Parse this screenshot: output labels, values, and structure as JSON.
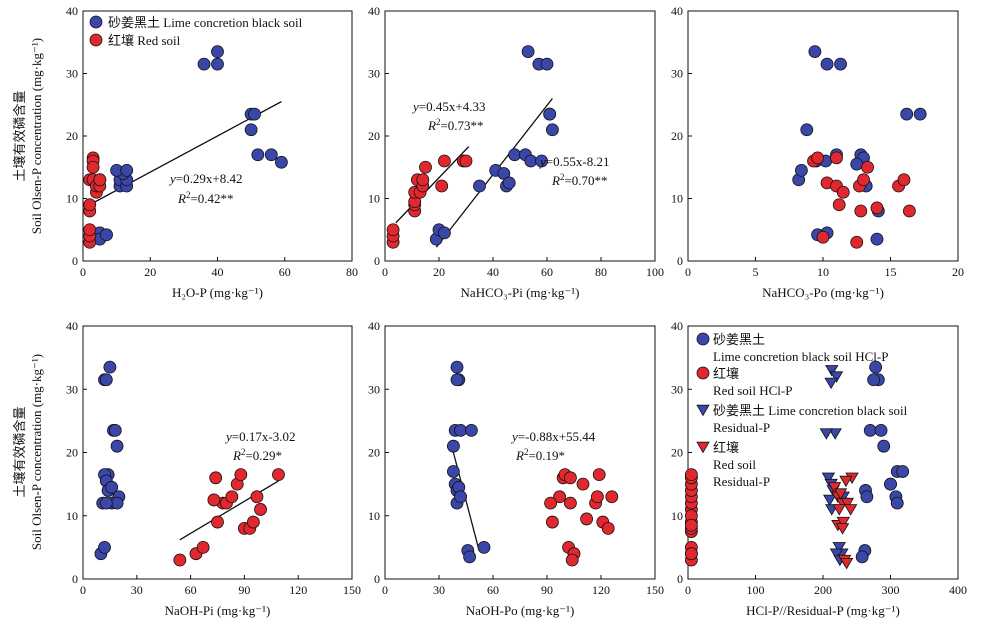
{
  "y_axis_label_cn": "土壤有效磷含量",
  "y_axis_label_en": "Soil Olsen-P concentration (mg·kg⁻¹)",
  "legend": {
    "top": [
      {
        "marker": "circle",
        "color": "#3a46a8",
        "label": "砂姜黑土 Lime concretion black soil"
      },
      {
        "marker": "circle",
        "color": "#e0282e",
        "label": "红壤 Red soil"
      }
    ],
    "bottom": [
      {
        "marker": "circle",
        "color": "#3a46a8",
        "line1": "砂姜黑土",
        "line2": "Lime concretion black soil HCl-P"
      },
      {
        "marker": "circle",
        "color": "#e0282e",
        "line1": "红壤",
        "line2": "Red soil HCl-P"
      },
      {
        "marker": "triangle",
        "color": "#3a46a8",
        "line1": "砂姜黑土 Lime concretion black soil",
        "line2": "Residual-P"
      },
      {
        "marker": "triangle",
        "color": "#e0282e",
        "line1": "红壤",
        "line2": "Red soil",
        "line3": "Residual-P"
      }
    ]
  },
  "colors": {
    "blue": "#3a46a8",
    "red": "#e0282e"
  },
  "chart_data": [
    {
      "type": "scatter",
      "xlabel": "H₂O-P (mg·kg⁻¹)",
      "xlim": [
        0,
        80
      ],
      "ylim": [
        0,
        40
      ],
      "xticks": [
        "0",
        "20",
        "40",
        "60",
        "80"
      ],
      "yticks": [
        "0",
        "10",
        "20",
        "30",
        "40"
      ],
      "series": [
        {
          "name": "砂姜黑土 Lime concretion black soil",
          "color": "#3a46a8",
          "marker": "circle",
          "x": [
            5,
            5,
            7,
            11,
            11,
            13,
            13,
            12,
            10,
            13,
            36,
            40,
            40,
            50,
            50,
            51,
            52,
            56,
            59
          ],
          "y": [
            4.5,
            3.5,
            4.2,
            12,
            13,
            12,
            13,
            14,
            14.5,
            14.5,
            31.5,
            31.5,
            33.5,
            21,
            23.5,
            23.5,
            17,
            17,
            15.8
          ]
        },
        {
          "name": "红壤 Red soil",
          "color": "#e0282e",
          "marker": "circle",
          "x": [
            2,
            2,
            2,
            2,
            2,
            2,
            3,
            3,
            3,
            3,
            4,
            4,
            5,
            5,
            5
          ],
          "y": [
            3,
            4,
            5,
            8,
            9,
            13,
            16.5,
            16,
            15,
            13,
            11,
            12,
            12,
            13,
            13
          ]
        }
      ],
      "fits": [
        {
          "x": [
            3,
            59
          ],
          "y": [
            9.3,
            25.5
          ]
        }
      ],
      "equation": {
        "lead": "y",
        "rest": "=0.29x+8.42",
        "r2": "=0.42**"
      }
    },
    {
      "type": "scatter",
      "xlabel": "NaHCO₃-Pi (mg·kg⁻¹)",
      "xlim": [
        0,
        100
      ],
      "ylim": [
        0,
        40
      ],
      "xticks": [
        "0",
        "20",
        "40",
        "60",
        "80",
        "100"
      ],
      "yticks": [
        "0",
        "10",
        "20",
        "30",
        "40"
      ],
      "series": [
        {
          "name": "砂姜黑土 Lime concretion black soil",
          "color": "#3a46a8",
          "marker": "circle",
          "x": [
            19,
            20,
            22,
            35,
            41,
            44,
            45,
            46,
            48,
            52,
            54,
            57,
            53,
            60,
            61,
            61,
            62,
            58
          ],
          "y": [
            3.5,
            5,
            4.5,
            12,
            14.5,
            14,
            12,
            12.5,
            17,
            17,
            16,
            31.5,
            33.5,
            31.5,
            23.5,
            23.5,
            21,
            16
          ]
        },
        {
          "name": "红壤 Red soil",
          "color": "#e0282e",
          "marker": "circle",
          "x": [
            3,
            3,
            3,
            11,
            11,
            11,
            11,
            12,
            13,
            14,
            14,
            15,
            21,
            22,
            29,
            30
          ],
          "y": [
            3,
            4,
            5,
            8,
            9,
            9.5,
            11,
            13,
            11,
            12,
            13,
            15,
            12,
            16,
            16,
            16
          ]
        }
      ],
      "fits": [
        {
          "x": [
            4,
            31
          ],
          "y": [
            6.1,
            18.3
          ]
        },
        {
          "x": [
            19,
            62
          ],
          "y": [
            2.2,
            26
          ]
        }
      ],
      "equation": {
        "lead": "y",
        "rest": "=0.45x+4.33",
        "r2": "=0.73**"
      },
      "equation2": {
        "lead": "y",
        "rest": "=0.55x-8.21",
        "r2": "=0.70**"
      }
    },
    {
      "type": "scatter",
      "xlabel": "NaHCO₃-Po (mg·kg⁻¹)",
      "xlim": [
        0,
        20
      ],
      "ylim": [
        0,
        40
      ],
      "xticks": [
        "0",
        "5",
        "10",
        "15",
        "20"
      ],
      "yticks": [
        "0",
        "10",
        "20",
        "30",
        "40"
      ],
      "series": [
        {
          "name": "砂姜黑土 Lime concretion black soil",
          "color": "#3a46a8",
          "marker": "circle",
          "x": [
            9.4,
            10.3,
            11.3,
            8.8,
            8.2,
            8.4,
            9.5,
            10.2,
            11,
            12.8,
            13,
            12.5,
            13.2,
            14.1,
            10.3,
            9.6,
            14,
            16.2,
            17.2
          ],
          "y": [
            33.5,
            31.5,
            31.5,
            21,
            13,
            14.5,
            16,
            16,
            17,
            17,
            16.5,
            15.5,
            12,
            8,
            4.5,
            4.2,
            3.5,
            23.5,
            23.5
          ]
        },
        {
          "name": "红壤 Red soil",
          "color": "#e0282e",
          "marker": "circle",
          "x": [
            9.3,
            9.6,
            10.3,
            11,
            11.5,
            11.2,
            12.7,
            13,
            13.3,
            12.8,
            12.5,
            14,
            15.6,
            16,
            16.4,
            11,
            10
          ],
          "y": [
            16,
            16.5,
            12.5,
            12,
            11,
            9,
            12,
            13,
            15,
            8,
            3,
            8.5,
            12,
            13,
            8,
            16.5,
            3.8
          ]
        }
      ],
      "fits": []
    },
    {
      "type": "scatter",
      "xlabel": "NaOH-Pi (mg·kg⁻¹)",
      "xlim": [
        0,
        150
      ],
      "ylim": [
        0,
        40
      ],
      "xticks": [
        "0",
        "30",
        "60",
        "90",
        "120",
        "150"
      ],
      "yticks": [
        "0",
        "10",
        "20",
        "30",
        "40"
      ],
      "series": [
        {
          "name": "砂姜黑土 Lime concretion black soil",
          "color": "#3a46a8",
          "marker": "circle",
          "x": [
            12,
            13,
            15,
            14,
            12,
            13,
            14,
            16,
            17,
            18,
            19,
            20,
            16,
            19,
            11,
            10,
            12,
            13
          ],
          "y": [
            31.5,
            31.5,
            33.5,
            16.5,
            16.5,
            15.5,
            14,
            14.5,
            23.5,
            23.5,
            21,
            13,
            12,
            12,
            12,
            4,
            5,
            12
          ]
        },
        {
          "name": "红壤 Red soil",
          "color": "#e0282e",
          "marker": "circle",
          "x": [
            54,
            63,
            67,
            74,
            75,
            78,
            80,
            83,
            86,
            88,
            90,
            93,
            95,
            97,
            99,
            109,
            73
          ],
          "y": [
            3,
            4,
            5,
            16,
            9,
            12,
            12,
            13,
            15,
            16.5,
            8,
            8,
            9,
            13,
            11,
            16.5,
            12.5
          ]
        }
      ],
      "fits": [
        {
          "x": [
            54,
            109
          ],
          "y": [
            6.2,
            15.5
          ]
        }
      ],
      "equation": {
        "lead": "y",
        "rest": "=0.17x-3.02",
        "r2": "=0.29*"
      }
    },
    {
      "type": "scatter",
      "xlabel": "NaOH-Po (mg·kg⁻¹)",
      "xlim": [
        0,
        150
      ],
      "ylim": [
        0,
        40
      ],
      "xticks": [
        "0",
        "30",
        "60",
        "90",
        "120",
        "150"
      ],
      "yticks": [
        "0",
        "10",
        "20",
        "30",
        "40"
      ],
      "series": [
        {
          "name": "砂姜黑土 Lime concretion black soil",
          "color": "#3a46a8",
          "marker": "circle",
          "x": [
            40,
            41,
            40,
            39,
            42,
            38,
            38,
            39,
            40,
            41,
            40,
            42,
            46,
            47,
            55,
            48
          ],
          "y": [
            33.5,
            31.5,
            31.5,
            23.5,
            23.5,
            21,
            17,
            15,
            14,
            14.5,
            12,
            13,
            4.5,
            3.5,
            5,
            23.5
          ]
        },
        {
          "name": "红壤 Red soil",
          "color": "#e0282e",
          "marker": "circle",
          "x": [
            93,
            97,
            99,
            100,
            102,
            105,
            104,
            103,
            110,
            112,
            117,
            118,
            119,
            121,
            124,
            126,
            103,
            92
          ],
          "y": [
            9,
            13,
            16,
            16.5,
            5,
            4,
            3,
            12,
            15,
            9.5,
            12,
            13,
            16.5,
            9,
            8,
            13,
            16,
            12
          ]
        }
      ],
      "fits": [
        {
          "x": [
            38,
            52
          ],
          "y": [
            20,
            4.8
          ]
        }
      ],
      "equation": {
        "lead": "y",
        "rest": "=-0.88x+55.44",
        "r2": "=0.19*"
      }
    },
    {
      "type": "scatter",
      "xlabel": "HCl-P//Residual-P (mg·kg⁻¹)",
      "xlim": [
        0,
        400
      ],
      "ylim": [
        0,
        40
      ],
      "xticks": [
        "0",
        "100",
        "200",
        "300",
        "400"
      ],
      "yticks": [
        "0",
        "10",
        "20",
        "30",
        "40"
      ],
      "series": [
        {
          "name": "砂姜黑土 Lime concretion black soil HCl-P",
          "color": "#3a46a8",
          "marker": "circle",
          "x": [
            278,
            282,
            275,
            270,
            286,
            290,
            263,
            265,
            300,
            310,
            318,
            308,
            262,
            258,
            310,
            300
          ],
          "y": [
            33.5,
            31.5,
            31.5,
            23.5,
            23.5,
            21,
            14,
            13,
            15,
            17,
            17,
            13,
            4.5,
            3.5,
            12,
            15
          ]
        },
        {
          "name": "红壤 Red soil HCl-P",
          "color": "#e0282e",
          "marker": "circle",
          "x": [
            5,
            5,
            5,
            5,
            5,
            5,
            5,
            5,
            5,
            5,
            5,
            5,
            5,
            5,
            5,
            5
          ],
          "y": [
            3,
            4,
            5,
            7.5,
            8,
            9,
            11,
            12,
            13,
            14,
            15,
            16,
            16.5,
            10,
            8.5,
            4
          ]
        },
        {
          "name": "砂姜黑土 Lime concretion black soil Residual-P",
          "color": "#3a46a8",
          "marker": "triangle",
          "x": [
            213,
            220,
            212,
            218,
            205,
            208,
            212,
            215,
            210,
            213,
            224,
            228,
            220,
            225,
            230
          ],
          "y": [
            33,
            32,
            31,
            23,
            23,
            16,
            15,
            14,
            12.5,
            11,
            5,
            4,
            4,
            3,
            13
          ]
        },
        {
          "name": "红壤 Red soil Residual-P",
          "color": "#e0282e",
          "marker": "triangle",
          "x": [
            217,
            222,
            229,
            236,
            241,
            243,
            234,
            226,
            222,
            230,
            229,
            232,
            235,
            224
          ],
          "y": [
            14.5,
            13,
            12,
            12,
            11,
            16,
            15.5,
            13.5,
            8.5,
            9,
            8,
            3,
            2.5,
            11
          ]
        }
      ],
      "fits": []
    }
  ]
}
